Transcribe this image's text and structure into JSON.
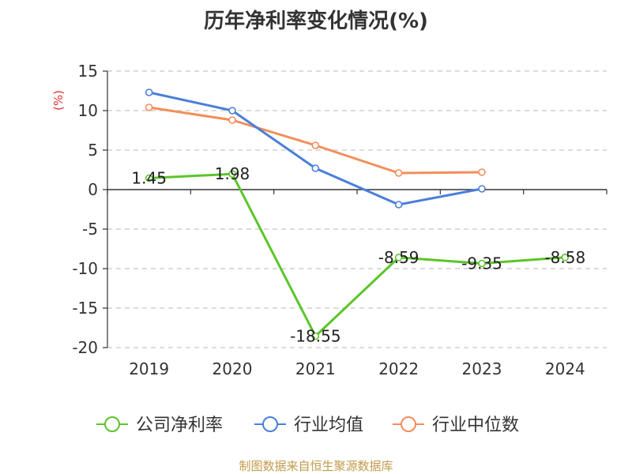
{
  "chart_data": {
    "type": "line",
    "title": "历年净利率变化情况(%)",
    "ylabel": "(%)",
    "xlabel": "",
    "categories": [
      "2019",
      "2020",
      "2021",
      "2022",
      "2023",
      "2024"
    ],
    "ylim": [
      -20,
      15
    ],
    "yticks": [
      15,
      10,
      5,
      0,
      -5,
      -10,
      -15,
      -20
    ],
    "ytick_labels": [
      "15",
      "10",
      "5",
      "0",
      "-5",
      "-10",
      "-15",
      "-20"
    ],
    "grid": true,
    "legend_position": "bottom",
    "series": [
      {
        "name": "公司净利率",
        "color": "#5bc52a",
        "values": [
          1.45,
          1.98,
          -18.55,
          -8.59,
          -9.35,
          -8.58
        ],
        "labels": [
          "1.45",
          "1.98",
          "-18.55",
          "-8.59",
          "-9.35",
          "-8.58"
        ]
      },
      {
        "name": "行业均值",
        "color": "#4a7fd9",
        "values": [
          12.3,
          10.0,
          2.7,
          -1.9,
          0.1,
          null
        ]
      },
      {
        "name": "行业中位数",
        "color": "#f28e5b",
        "values": [
          10.4,
          8.8,
          5.6,
          2.1,
          2.2,
          null
        ]
      }
    ]
  },
  "source": "制图数据来自恒生聚源数据库",
  "colors": {
    "ylabel": "#e03030",
    "axis": "#333333",
    "grid": "#c8c8c8",
    "source": "#c29a4a"
  }
}
